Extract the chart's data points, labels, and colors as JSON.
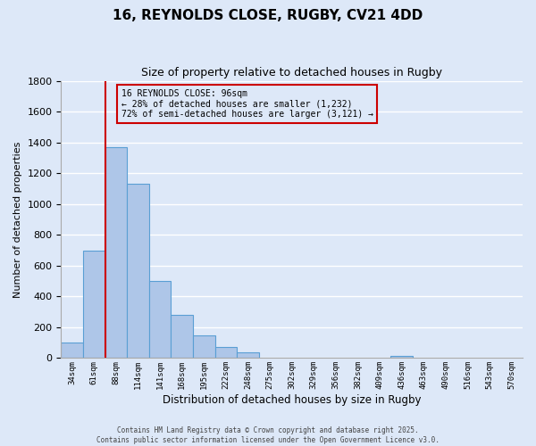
{
  "title": "16, REYNOLDS CLOSE, RUGBY, CV21 4DD",
  "subtitle": "Size of property relative to detached houses in Rugby",
  "xlabel": "Distribution of detached houses by size in Rugby",
  "ylabel": "Number of detached properties",
  "bin_labels": [
    "34sqm",
    "61sqm",
    "88sqm",
    "114sqm",
    "141sqm",
    "168sqm",
    "195sqm",
    "222sqm",
    "248sqm",
    "275sqm",
    "302sqm",
    "329sqm",
    "356sqm",
    "382sqm",
    "409sqm",
    "436sqm",
    "463sqm",
    "490sqm",
    "516sqm",
    "543sqm",
    "570sqm"
  ],
  "bin_values": [
    100,
    700,
    1370,
    1130,
    500,
    280,
    145,
    70,
    35,
    0,
    0,
    0,
    0,
    0,
    0,
    12,
    0,
    0,
    0,
    0,
    0
  ],
  "bin_width": 27,
  "bar_color": "#aec6e8",
  "bar_edge_color": "#5a9fd4",
  "vline_x_bin": 2,
  "vline_color": "#cc0000",
  "annotation_title": "16 REYNOLDS CLOSE: 96sqm",
  "annotation_line2": "← 28% of detached houses are smaller (1,232)",
  "annotation_line3": "72% of semi-detached houses are larger (3,121) →",
  "annotation_box_color": "#cc0000",
  "annotation_text_color": "#000000",
  "ylim": [
    0,
    1800
  ],
  "yticks": [
    0,
    200,
    400,
    600,
    800,
    1000,
    1200,
    1400,
    1600,
    1800
  ],
  "background_color": "#dde8f8",
  "grid_color": "#ffffff",
  "footer_line1": "Contains HM Land Registry data © Crown copyright and database right 2025.",
  "footer_line2": "Contains public sector information licensed under the Open Government Licence v3.0."
}
